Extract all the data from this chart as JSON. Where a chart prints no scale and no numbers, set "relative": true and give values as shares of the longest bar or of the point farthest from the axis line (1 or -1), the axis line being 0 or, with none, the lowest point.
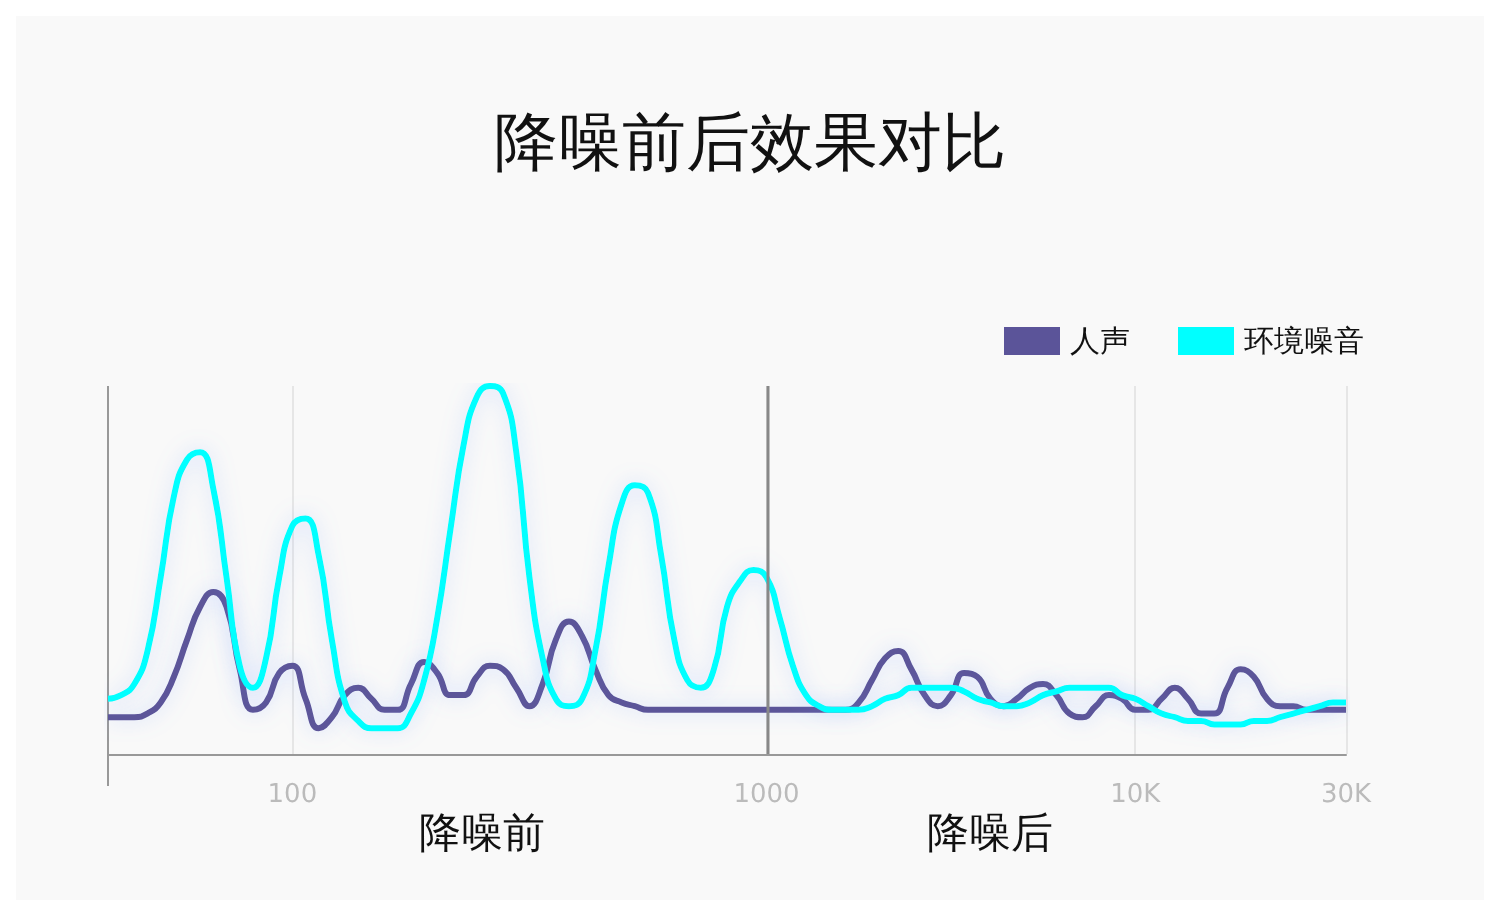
{
  "chart_data": {
    "type": "line",
    "title": "降噪前后效果对比",
    "relative": true,
    "categories": [
      null,
      null,
      null,
      null,
      null,
      null,
      null,
      null,
      null,
      null,
      null,
      null,
      null,
      null,
      "100",
      null,
      null,
      null,
      null,
      null,
      null,
      null,
      null,
      null,
      null,
      null,
      null,
      null,
      null,
      null,
      null,
      null,
      null,
      null,
      null,
      null,
      null,
      null,
      null,
      null,
      null,
      null,
      null,
      null,
      null,
      null,
      null,
      null,
      null,
      null,
      "1000",
      null,
      null,
      null,
      null,
      null,
      null,
      null,
      null,
      null,
      null,
      null,
      null,
      null,
      null,
      null,
      null,
      null,
      null,
      null,
      null,
      null,
      null,
      null,
      null,
      null,
      null,
      null,
      "10K",
      null,
      null,
      null,
      null,
      null,
      null,
      null,
      null,
      null,
      null,
      null,
      null,
      null,
      null,
      null,
      "30K"
    ],
    "series": [
      {
        "name": "人声",
        "color": "#5b5499",
        "values": [
          0.1,
          0.1,
          0.1,
          0.11,
          0.14,
          0.21,
          0.31,
          0.4,
          0.44,
          0.4,
          0.23,
          0.12,
          0.14,
          0.22,
          0.24,
          0.15,
          0.07,
          0.1,
          0.16,
          0.18,
          0.15,
          0.12,
          0.12,
          0.19,
          0.25,
          0.22,
          0.16,
          0.16,
          0.21,
          0.24,
          0.23,
          0.18,
          0.13,
          0.19,
          0.31,
          0.36,
          0.32,
          0.23,
          0.16,
          0.14,
          0.13,
          0.12,
          0.12,
          0.12,
          0.12,
          0.12,
          0.12,
          0.12,
          0.12,
          0.12,
          0.12,
          0.12,
          0.12,
          0.12,
          0.12,
          0.12,
          0.12,
          0.14,
          0.2,
          0.26,
          0.28,
          0.23,
          0.16,
          0.13,
          0.16,
          0.22,
          0.21,
          0.15,
          0.13,
          0.15,
          0.18,
          0.19,
          0.16,
          0.11,
          0.1,
          0.13,
          0.16,
          0.15,
          0.12,
          0.12,
          0.15,
          0.18,
          0.15,
          0.11,
          0.11,
          0.18,
          0.23,
          0.21,
          0.15,
          0.13,
          0.13,
          0.12,
          0.12,
          0.12,
          0.12
        ]
      },
      {
        "name": "环境噪音",
        "color": "#00ffff",
        "values": [
          0.15,
          0.16,
          0.19,
          0.28,
          0.48,
          0.7,
          0.8,
          0.82,
          0.72,
          0.48,
          0.24,
          0.18,
          0.26,
          0.48,
          0.62,
          0.64,
          0.54,
          0.31,
          0.14,
          0.09,
          0.07,
          0.07,
          0.07,
          0.11,
          0.2,
          0.37,
          0.61,
          0.84,
          0.97,
          1,
          0.98,
          0.82,
          0.48,
          0.26,
          0.15,
          0.13,
          0.15,
          0.28,
          0.51,
          0.68,
          0.73,
          0.71,
          0.54,
          0.31,
          0.2,
          0.18,
          0.23,
          0.4,
          0.47,
          0.5,
          0.48,
          0.37,
          0.24,
          0.16,
          0.13,
          0.12,
          0.12,
          0.12,
          0.13,
          0.15,
          0.16,
          0.18,
          0.18,
          0.18,
          0.18,
          0.17,
          0.15,
          0.14,
          0.13,
          0.13,
          0.14,
          0.16,
          0.17,
          0.18,
          0.18,
          0.18,
          0.18,
          0.16,
          0.15,
          0.13,
          0.11,
          0.1,
          0.09,
          0.09,
          0.08,
          0.08,
          0.08,
          0.09,
          0.09,
          0.1,
          0.11,
          0.12,
          0.13,
          0.14,
          0.14
        ]
      }
    ],
    "grid": "x",
    "legend": "top right",
    "marker": "none",
    "line_style": "solid",
    "ref_lines": [
      {
        "axis": "x",
        "value": "1000",
        "color": "#888888"
      }
    ],
    "annotations": [
      "降噪前",
      "降噪后"
    ]
  }
}
